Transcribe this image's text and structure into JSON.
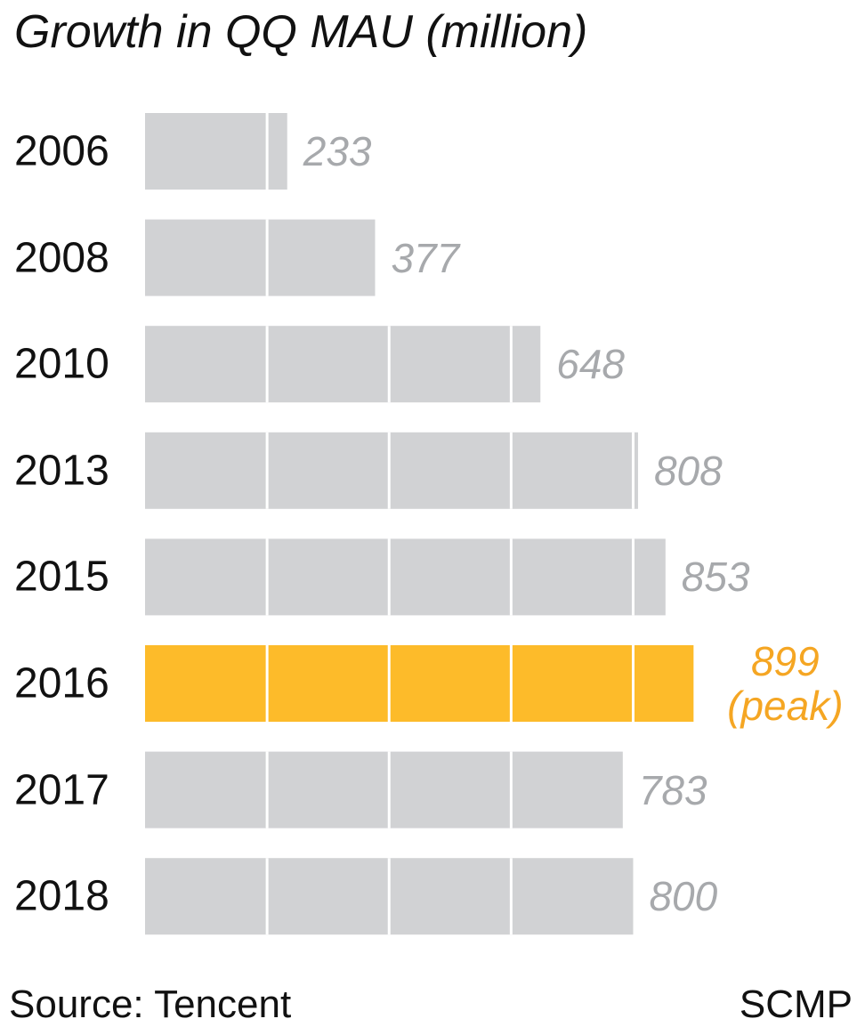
{
  "chart_data": {
    "type": "hbar",
    "title": "Growth in QQ MAU (million)",
    "categories": [
      "2006",
      "2008",
      "2010",
      "2013",
      "2015",
      "2016",
      "2017",
      "2018"
    ],
    "values": [
      233,
      377,
      648,
      808,
      853,
      899,
      783,
      800
    ],
    "value_labels": [
      "233",
      "377",
      "648",
      "808",
      "853",
      "899 (peak)",
      "783",
      "800"
    ],
    "colors": [
      "#d1d2d4",
      "#d1d2d4",
      "#d1d2d4",
      "#d1d2d4",
      "#d1d2d4",
      "#fdbb2a",
      "#d1d2d4",
      "#d1d2d4"
    ],
    "label_colors": [
      "#a7a9ac",
      "#a7a9ac",
      "#a7a9ac",
      "#a7a9ac",
      "#a7a9ac",
      "#f5a623",
      "#a7a9ac",
      "#a7a9ac"
    ],
    "xlim": [
      0,
      1180
    ],
    "dividers": [
      200,
      400,
      600,
      800
    ],
    "source": "Source: Tencent",
    "credit": "SCMP"
  }
}
